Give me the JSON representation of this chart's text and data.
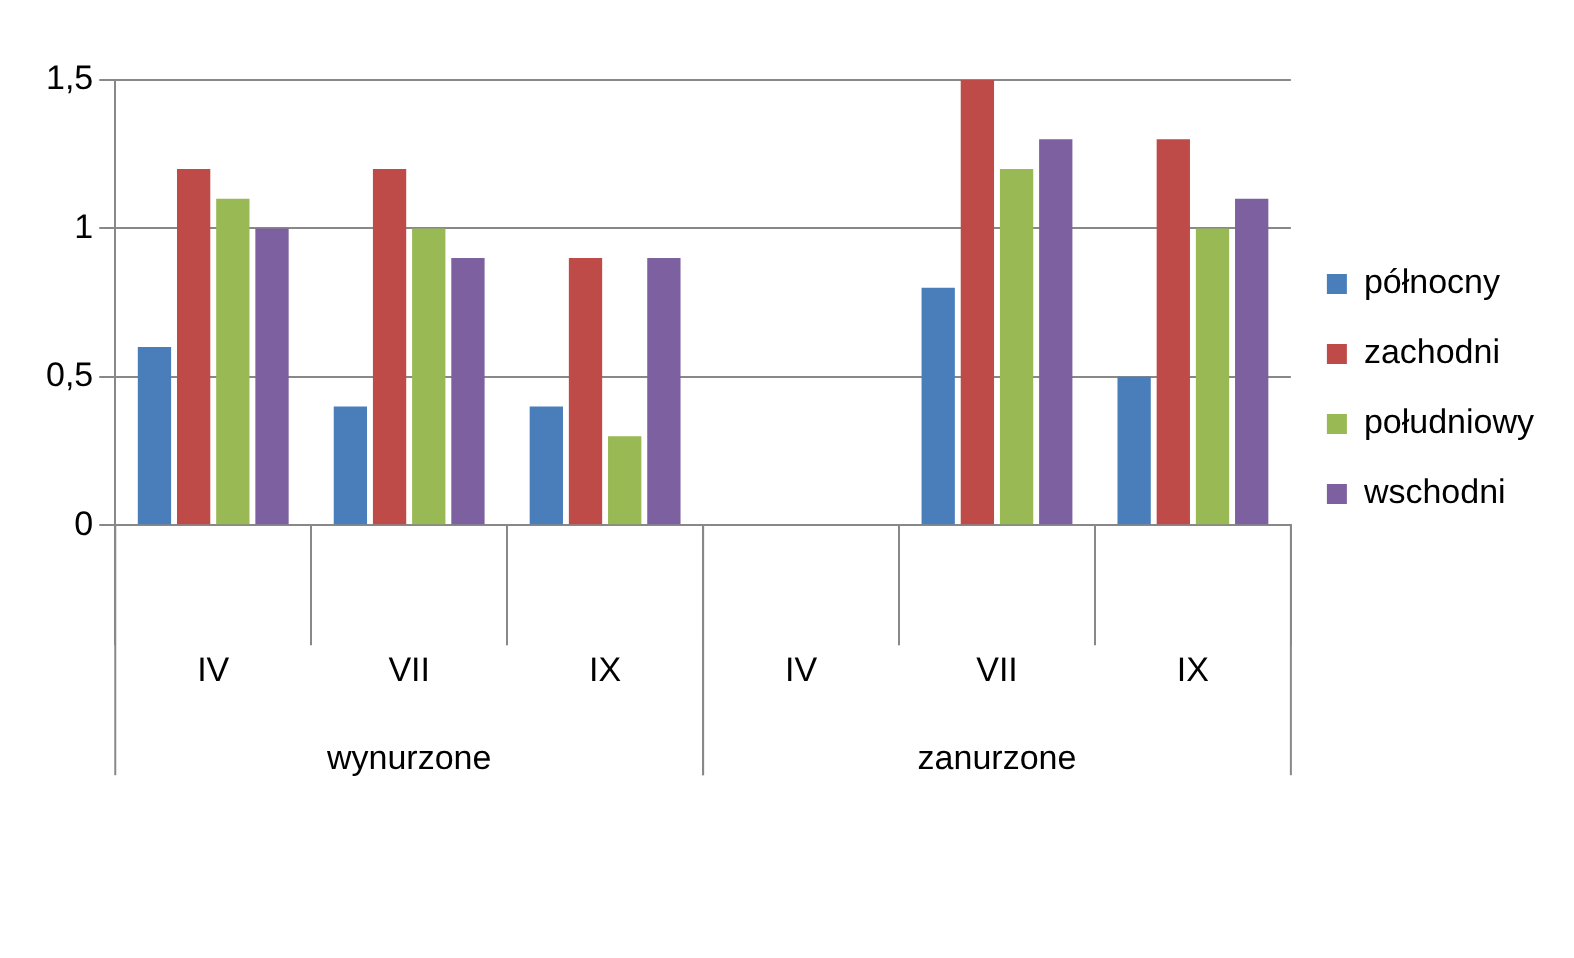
{
  "chart_data": {
    "type": "bar",
    "categories": [
      "IV",
      "VII",
      "IX",
      "IV",
      "VII",
      "IX"
    ],
    "series": [
      {
        "name": "północny",
        "color": "#4a7ebb",
        "values": [
          0.6,
          0.4,
          0.4,
          0,
          0.8,
          0.5
        ]
      },
      {
        "name": "zachodni",
        "color": "#be4b48",
        "values": [
          1.2,
          1.2,
          0.9,
          0,
          1.5,
          1.3
        ]
      },
      {
        "name": "południowy",
        "color": "#98b954",
        "values": [
          1.1,
          1.0,
          0.3,
          0,
          1.2,
          1.0
        ]
      },
      {
        "name": "wschodni",
        "color": "#7d60a0",
        "values": [
          1.0,
          0.9,
          0.9,
          0,
          1.3,
          1.1
        ]
      }
    ],
    "ylim": [
      0,
      1.5
    ],
    "yticks": [
      0,
      {
        "value": 0.5,
        "label": "0,5"
      },
      1,
      {
        "value": 1.5,
        "label": "1,5"
      }
    ],
    "grid": "y",
    "legend": "right",
    "annotations": [
      "wynurzone",
      "zanurzone"
    ]
  }
}
